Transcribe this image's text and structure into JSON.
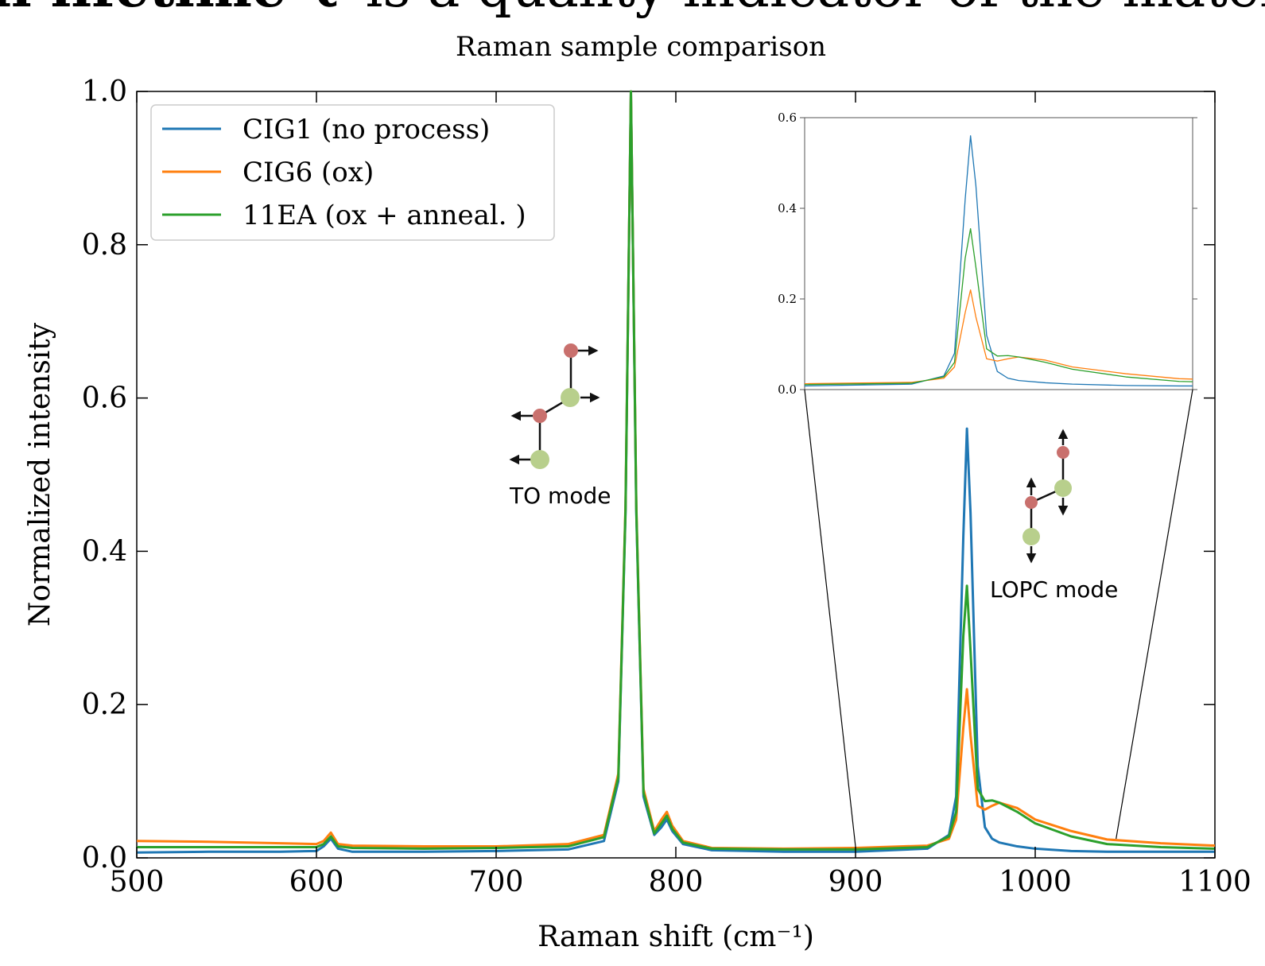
{
  "heading": {
    "bold": "al lifetime τ",
    "rest": "is a quality indicator of the materia"
  },
  "chart_data": {
    "type": "line",
    "title": "Raman sample comparison",
    "x_label": "Raman shift (cm⁻¹)",
    "y_label": "Normalized intensity",
    "x": [
      500,
      540,
      580,
      600,
      604,
      608,
      612,
      620,
      660,
      700,
      740,
      760,
      768,
      772,
      775,
      778,
      782,
      788,
      792,
      795,
      798,
      804,
      820,
      860,
      900,
      940,
      952,
      956,
      960,
      962,
      964,
      968,
      972,
      976,
      980,
      990,
      1000,
      1020,
      1040,
      1070,
      1100
    ],
    "series": [
      {
        "name": "CIG1 (no process)",
        "color": "#1f77b4",
        "values": [
          0.007,
          0.008,
          0.008,
          0.009,
          0.015,
          0.025,
          0.012,
          0.008,
          0.008,
          0.009,
          0.011,
          0.022,
          0.1,
          0.45,
          1.0,
          0.45,
          0.08,
          0.03,
          0.04,
          0.05,
          0.035,
          0.018,
          0.01,
          0.008,
          0.008,
          0.012,
          0.03,
          0.08,
          0.42,
          0.56,
          0.45,
          0.12,
          0.04,
          0.025,
          0.02,
          0.015,
          0.012,
          0.009,
          0.008,
          0.008,
          0.008
        ]
      },
      {
        "name": "CIG6 (ox)",
        "color": "#ff7f0e",
        "values": [
          0.022,
          0.021,
          0.019,
          0.018,
          0.022,
          0.033,
          0.018,
          0.016,
          0.015,
          0.015,
          0.018,
          0.03,
          0.11,
          0.46,
          1.0,
          0.46,
          0.09,
          0.035,
          0.05,
          0.06,
          0.042,
          0.022,
          0.013,
          0.012,
          0.013,
          0.016,
          0.025,
          0.05,
          0.17,
          0.22,
          0.16,
          0.068,
          0.063,
          0.068,
          0.072,
          0.065,
          0.05,
          0.035,
          0.024,
          0.019,
          0.016
        ]
      },
      {
        "name": "11EA (ox + anneal. )",
        "color": "#2ca02c",
        "values": [
          0.014,
          0.014,
          0.014,
          0.014,
          0.018,
          0.028,
          0.015,
          0.013,
          0.012,
          0.013,
          0.015,
          0.027,
          0.105,
          0.455,
          1.0,
          0.455,
          0.085,
          0.032,
          0.045,
          0.055,
          0.038,
          0.02,
          0.012,
          0.011,
          0.011,
          0.014,
          0.028,
          0.06,
          0.29,
          0.355,
          0.27,
          0.09,
          0.074,
          0.075,
          0.072,
          0.06,
          0.045,
          0.028,
          0.018,
          0.014,
          0.012
        ]
      }
    ],
    "xlim": [
      500,
      1100
    ],
    "ylim": [
      0,
      1.0
    ],
    "xticks": [
      500,
      600,
      700,
      800,
      900,
      1000,
      1100
    ],
    "yticks": [
      {
        "value": 0,
        "label": "0.0"
      },
      {
        "value": 0.2,
        "label": "0.2"
      },
      {
        "value": 0.4,
        "label": "0.4"
      },
      {
        "value": 0.6,
        "label": "0.6"
      },
      {
        "value": 0.8,
        "label": "0.8"
      },
      {
        "value": 1.0,
        "label": "1.0"
      }
    ],
    "legend": "upper left",
    "annotations": [
      "TO mode",
      "LOPC mode"
    ],
    "inset": {
      "xlim": [
        900,
        1045
      ],
      "ylim": [
        0,
        0.6
      ],
      "yticks": [
        {
          "value": 0,
          "label": "0.0"
        },
        {
          "value": 0.2,
          "label": "0.2"
        },
        {
          "value": 0.4,
          "label": "0.4"
        },
        {
          "value": 0.6,
          "label": "0.6"
        }
      ]
    }
  }
}
